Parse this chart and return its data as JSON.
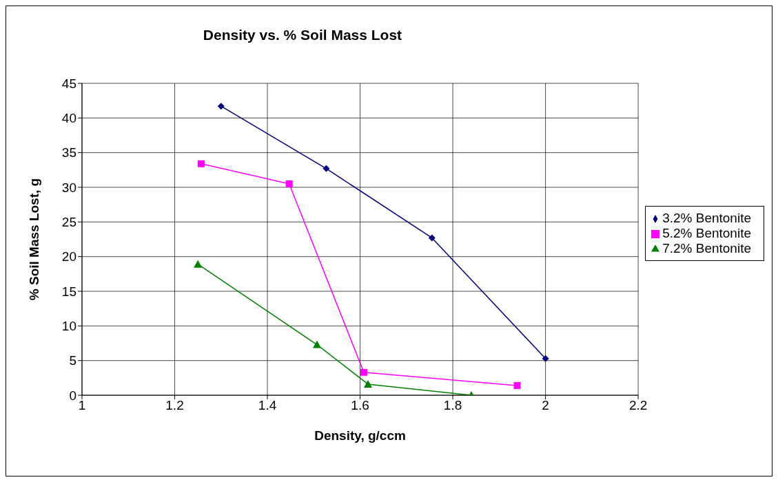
{
  "chart_data": {
    "type": "line",
    "title": "Density vs. % Soil Mass Lost",
    "xlabel": "Density, g/ccm",
    "ylabel": "% Soil Mass Lost, g",
    "series": [
      {
        "name": "3.2% Bentonite",
        "color": "#000080",
        "marker": "diamond",
        "x": [
          1.3,
          1.527,
          1.755,
          2.0
        ],
        "values": [
          41.7,
          32.7,
          22.7,
          5.3
        ]
      },
      {
        "name": "5.2% Bentonite",
        "color": "#ff00ff",
        "marker": "square",
        "x": [
          1.257,
          1.447,
          1.608,
          1.939
        ],
        "values": [
          33.4,
          30.5,
          3.3,
          1.4
        ]
      },
      {
        "name": "7.2% Bentonite",
        "color": "#008000",
        "marker": "triangle",
        "x": [
          1.25,
          1.507,
          1.617,
          1.84
        ],
        "values": [
          18.9,
          7.3,
          1.6,
          0
        ]
      }
    ],
    "xlim": [
      1,
      2.2
    ],
    "xticks": [
      1,
      1.2,
      1.4,
      1.6,
      1.8,
      2,
      2.2
    ],
    "ylim": [
      0,
      45
    ],
    "yticks": [
      0,
      5,
      10,
      15,
      20,
      25,
      30,
      35,
      40,
      45
    ],
    "grid": true,
    "legend": "right",
    "line_style": "solid"
  }
}
